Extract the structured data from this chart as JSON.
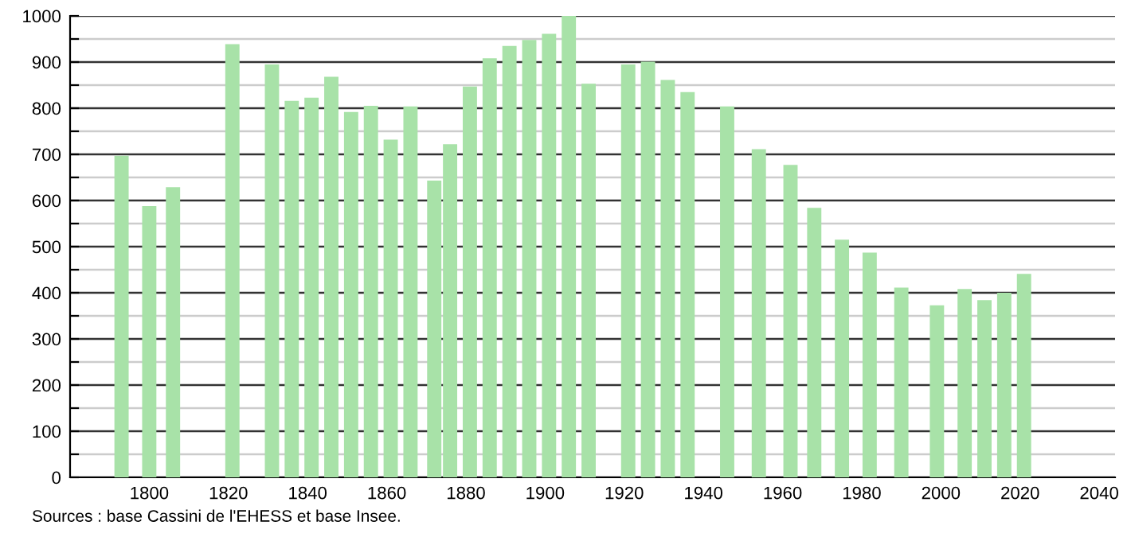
{
  "chart_data": {
    "type": "bar",
    "x": [
      1793,
      1800,
      1806,
      1821,
      1831,
      1836,
      1841,
      1846,
      1851,
      1856,
      1861,
      1866,
      1872,
      1876,
      1881,
      1886,
      1891,
      1896,
      1901,
      1906,
      1911,
      1921,
      1926,
      1931,
      1936,
      1946,
      1954,
      1962,
      1968,
      1975,
      1982,
      1990,
      1999,
      2006,
      2011,
      2016,
      2021
    ],
    "values": [
      697,
      588,
      629,
      939,
      895,
      816,
      823,
      868,
      792,
      805,
      732,
      804,
      643,
      722,
      847,
      908,
      935,
      948,
      961,
      1000,
      853,
      895,
      901,
      861,
      835,
      804,
      711,
      677,
      584,
      515,
      487,
      411,
      373,
      408,
      384,
      400,
      441
    ],
    "color": "#a8e2a8",
    "xlim": [
      1780,
      2044
    ],
    "xticks": [
      1800,
      1820,
      1840,
      1860,
      1880,
      1900,
      1920,
      1940,
      1960,
      1980,
      2000,
      2020,
      2040
    ],
    "ylim": [
      0,
      1000
    ],
    "yticks": [
      0,
      {
        "value": 50,
        "label": null
      },
      100,
      {
        "value": 150,
        "label": null
      },
      200,
      {
        "value": 250,
        "label": null
      },
      300,
      {
        "value": 350,
        "label": null
      },
      400,
      {
        "value": 450,
        "label": null
      },
      500,
      {
        "value": 550,
        "label": null
      },
      600,
      {
        "value": 650,
        "label": null
      },
      700,
      {
        "value": 750,
        "label": null
      },
      800,
      {
        "value": 850,
        "label": null
      },
      900,
      {
        "value": 950,
        "label": null
      },
      1000
    ],
    "grid": "y",
    "annotations": [
      "Sources : base Cassini de l'EHESS et base Insee."
    ]
  }
}
